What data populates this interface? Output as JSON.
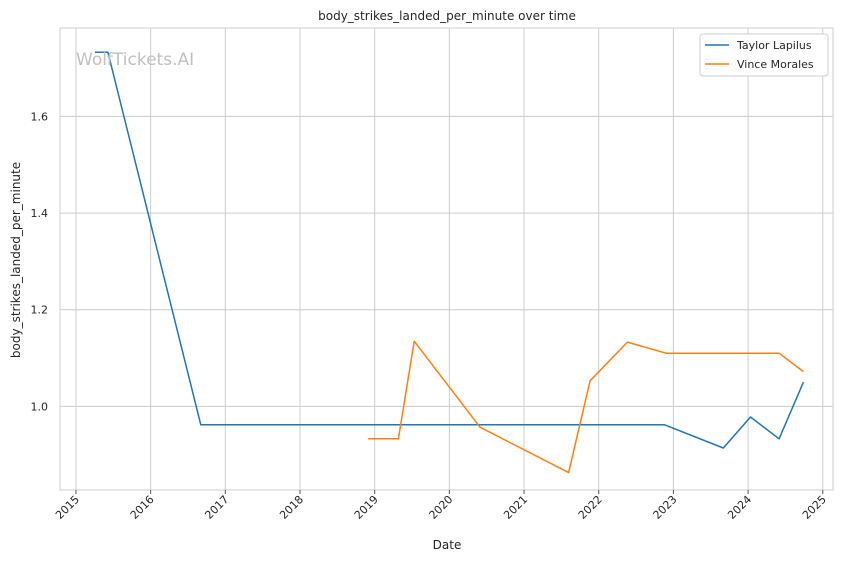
{
  "chart_data": {
    "type": "line",
    "title": "body_strikes_landed_per_minute over time",
    "xlabel": "Date",
    "ylabel": "body_strikes_landed_per_minute",
    "watermark": "WolfTickets.AI",
    "x_ticks": [
      "2015",
      "2016",
      "2017",
      "2018",
      "2019",
      "2020",
      "2021",
      "2022",
      "2023",
      "2024",
      "2025"
    ],
    "y_ticks": [
      "1.0",
      "1.2",
      "1.4",
      "1.6"
    ],
    "xlim": [
      "2014-10-15",
      "2025-02-20"
    ],
    "ylim": [
      0.827,
      1.783
    ],
    "grid": true,
    "legend_position": "top-right",
    "series": [
      {
        "name": "Taylor Lapilus",
        "color": "#1f77b4",
        "points": [
          [
            "2015-04-04",
            1.733
          ],
          [
            "2015-06-06",
            1.733
          ],
          [
            "2016-09-03",
            0.962
          ],
          [
            "2022-11-19",
            0.962
          ],
          [
            "2023-09-02",
            0.914
          ],
          [
            "2024-01-13",
            0.978
          ],
          [
            "2024-06-01",
            0.933
          ],
          [
            "2024-09-28",
            1.05
          ]
        ]
      },
      {
        "name": "Vince Morales",
        "color": "#ff7f0e",
        "points": [
          [
            "2018-11-30",
            0.933
          ],
          [
            "2019-04-27",
            0.933
          ],
          [
            "2019-07-13",
            1.135
          ],
          [
            "2020-05-30",
            0.957
          ],
          [
            "2021-08-07",
            0.863
          ],
          [
            "2021-11-20",
            1.053
          ],
          [
            "2022-05-21",
            1.133
          ],
          [
            "2022-11-26",
            1.11
          ],
          [
            "2024-06-01",
            1.11
          ],
          [
            "2024-09-28",
            1.072
          ]
        ]
      }
    ]
  }
}
